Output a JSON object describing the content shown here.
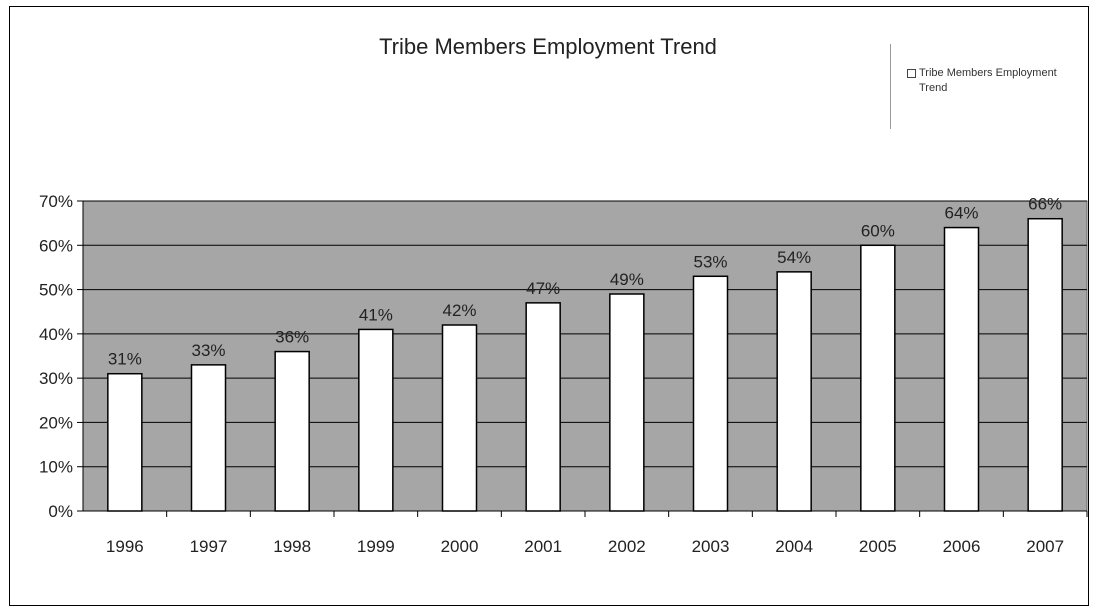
{
  "chart_data": {
    "type": "bar",
    "title": "Tribe Members Employment Trend",
    "categories": [
      "1996",
      "1997",
      "1998",
      "1999",
      "2000",
      "2001",
      "2002",
      "2003",
      "2004",
      "2005",
      "2006",
      "2007"
    ],
    "series": [
      {
        "name": "Tribe Members Employment Trend",
        "values": [
          31,
          33,
          36,
          41,
          42,
          47,
          49,
          53,
          54,
          60,
          64,
          66
        ],
        "data_labels": [
          "31%",
          "33%",
          "36%",
          "41%",
          "42%",
          "47%",
          "49%",
          "53%",
          "54%",
          "60%",
          "64%",
          "66%"
        ]
      }
    ],
    "xlabel": "",
    "ylabel": "",
    "ylim": [
      0,
      70
    ],
    "y_ticks": [
      "0%",
      "10%",
      "20%",
      "30%",
      "40%",
      "50%",
      "60%",
      "70%"
    ],
    "grid": true,
    "legend": "top-right",
    "colors": {
      "plot_background": "#a6a6a6",
      "bar_fill": "#ffffff",
      "bar_stroke": "#000000",
      "gridline": "#000000"
    }
  }
}
